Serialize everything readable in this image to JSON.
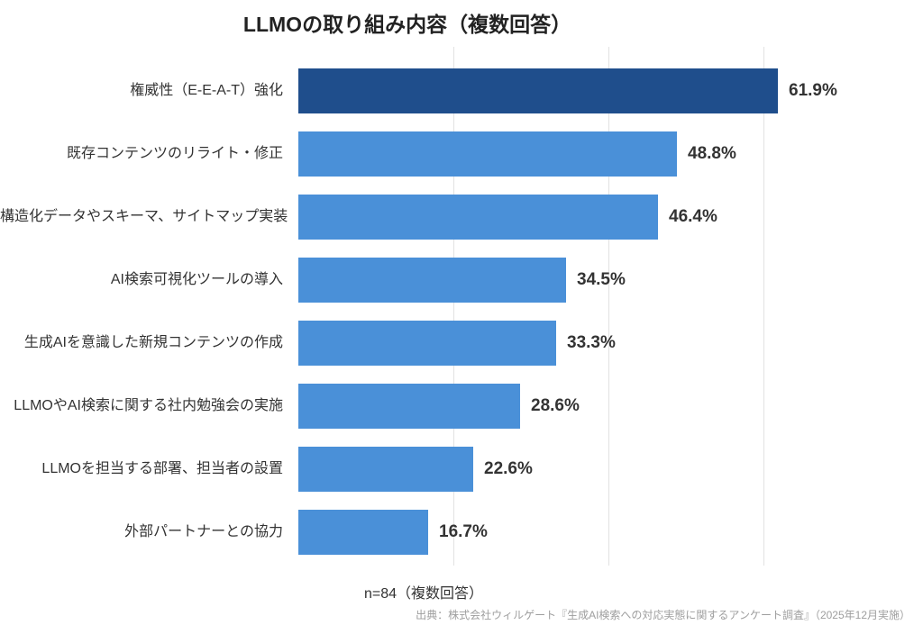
{
  "title": "LLMOの取り組み内容（複数回答）",
  "footer": {
    "sample_note": "n=84（複数回答）",
    "source": "出典：株式会社ウィルゲート『生成AI検索への対応実態に関するアンケート調査』（2025年12月実施）"
  },
  "colors": {
    "bar_highlight": "#1F4E8C",
    "bar_default": "#4A90D8",
    "gridline": "#E2E2E2",
    "category_text": "#333333",
    "value_text": "#333333",
    "source_text": "#9E9E9E"
  },
  "chart_data": {
    "type": "bar",
    "orientation": "horizontal",
    "title": "LLMOの取り組み内容（複数回答）",
    "categories": [
      "権威性（E-E-A-T）強化",
      "既存コンテンツのリライト・修正",
      "構造化データやスキーマ、サイトマップ実装",
      "AI検索可視化ツールの導入",
      "生成AIを意識した新規コンテンツの作成",
      "LLMOやAI検索に関する社内勉強会の実施",
      "LLMOを担当する部署、担当者の設置",
      "外部パートナーとの協力"
    ],
    "values": [
      61.9,
      48.8,
      46.4,
      34.5,
      33.3,
      28.6,
      22.6,
      16.7
    ],
    "value_labels": [
      "61.9%",
      "48.8%",
      "46.4%",
      "34.5%",
      "33.3%",
      "28.6%",
      "22.6%",
      "16.7%"
    ],
    "highlight_index": 0,
    "xlim": [
      0,
      80
    ],
    "gridline_values": [
      20,
      40,
      60
    ],
    "grid": true,
    "legend_position": "none",
    "xlabel": "",
    "ylabel": ""
  }
}
